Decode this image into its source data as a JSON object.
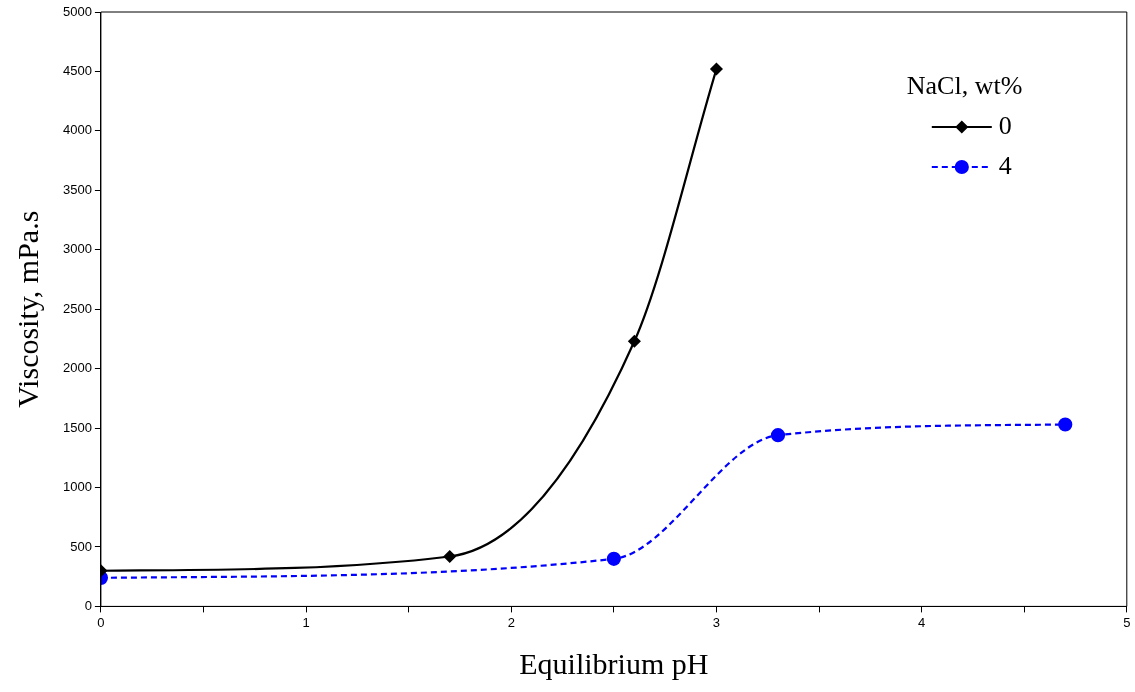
{
  "chart_data": {
    "type": "line",
    "xlabel": "Equilibrium pH",
    "ylabel": "Viscosity, mPa.s",
    "legend_title": "NaCl, wt%",
    "legend": "top right",
    "grid": false,
    "xlim": [
      0,
      5
    ],
    "xticks": [
      0,
      {
        "value": 0.5,
        "label": null
      },
      1,
      {
        "value": 1.5,
        "label": null
      },
      2,
      {
        "value": 2.5,
        "label": null
      },
      3,
      {
        "value": 3.5,
        "label": null
      },
      4,
      {
        "value": 4.5,
        "label": null
      },
      5
    ],
    "ylim": [
      0,
      5000
    ],
    "yticks": [
      0,
      500,
      1000,
      1500,
      2000,
      2500,
      3000,
      3500,
      4000,
      4500,
      5000
    ],
    "series": [
      {
        "name": "0",
        "color": "#000000",
        "marker": "diamond",
        "line_style": "solid",
        "x": [
          0,
          1.7,
          2.6,
          3.0
        ],
        "values": [
          300,
          420,
          2230,
          4520
        ]
      },
      {
        "name": "4",
        "color": "#0000ff",
        "marker": "circle",
        "line_style": "dashed",
        "x": [
          0,
          2.5,
          3.3,
          4.7
        ],
        "values": [
          240,
          400,
          1440,
          1530
        ]
      }
    ]
  }
}
